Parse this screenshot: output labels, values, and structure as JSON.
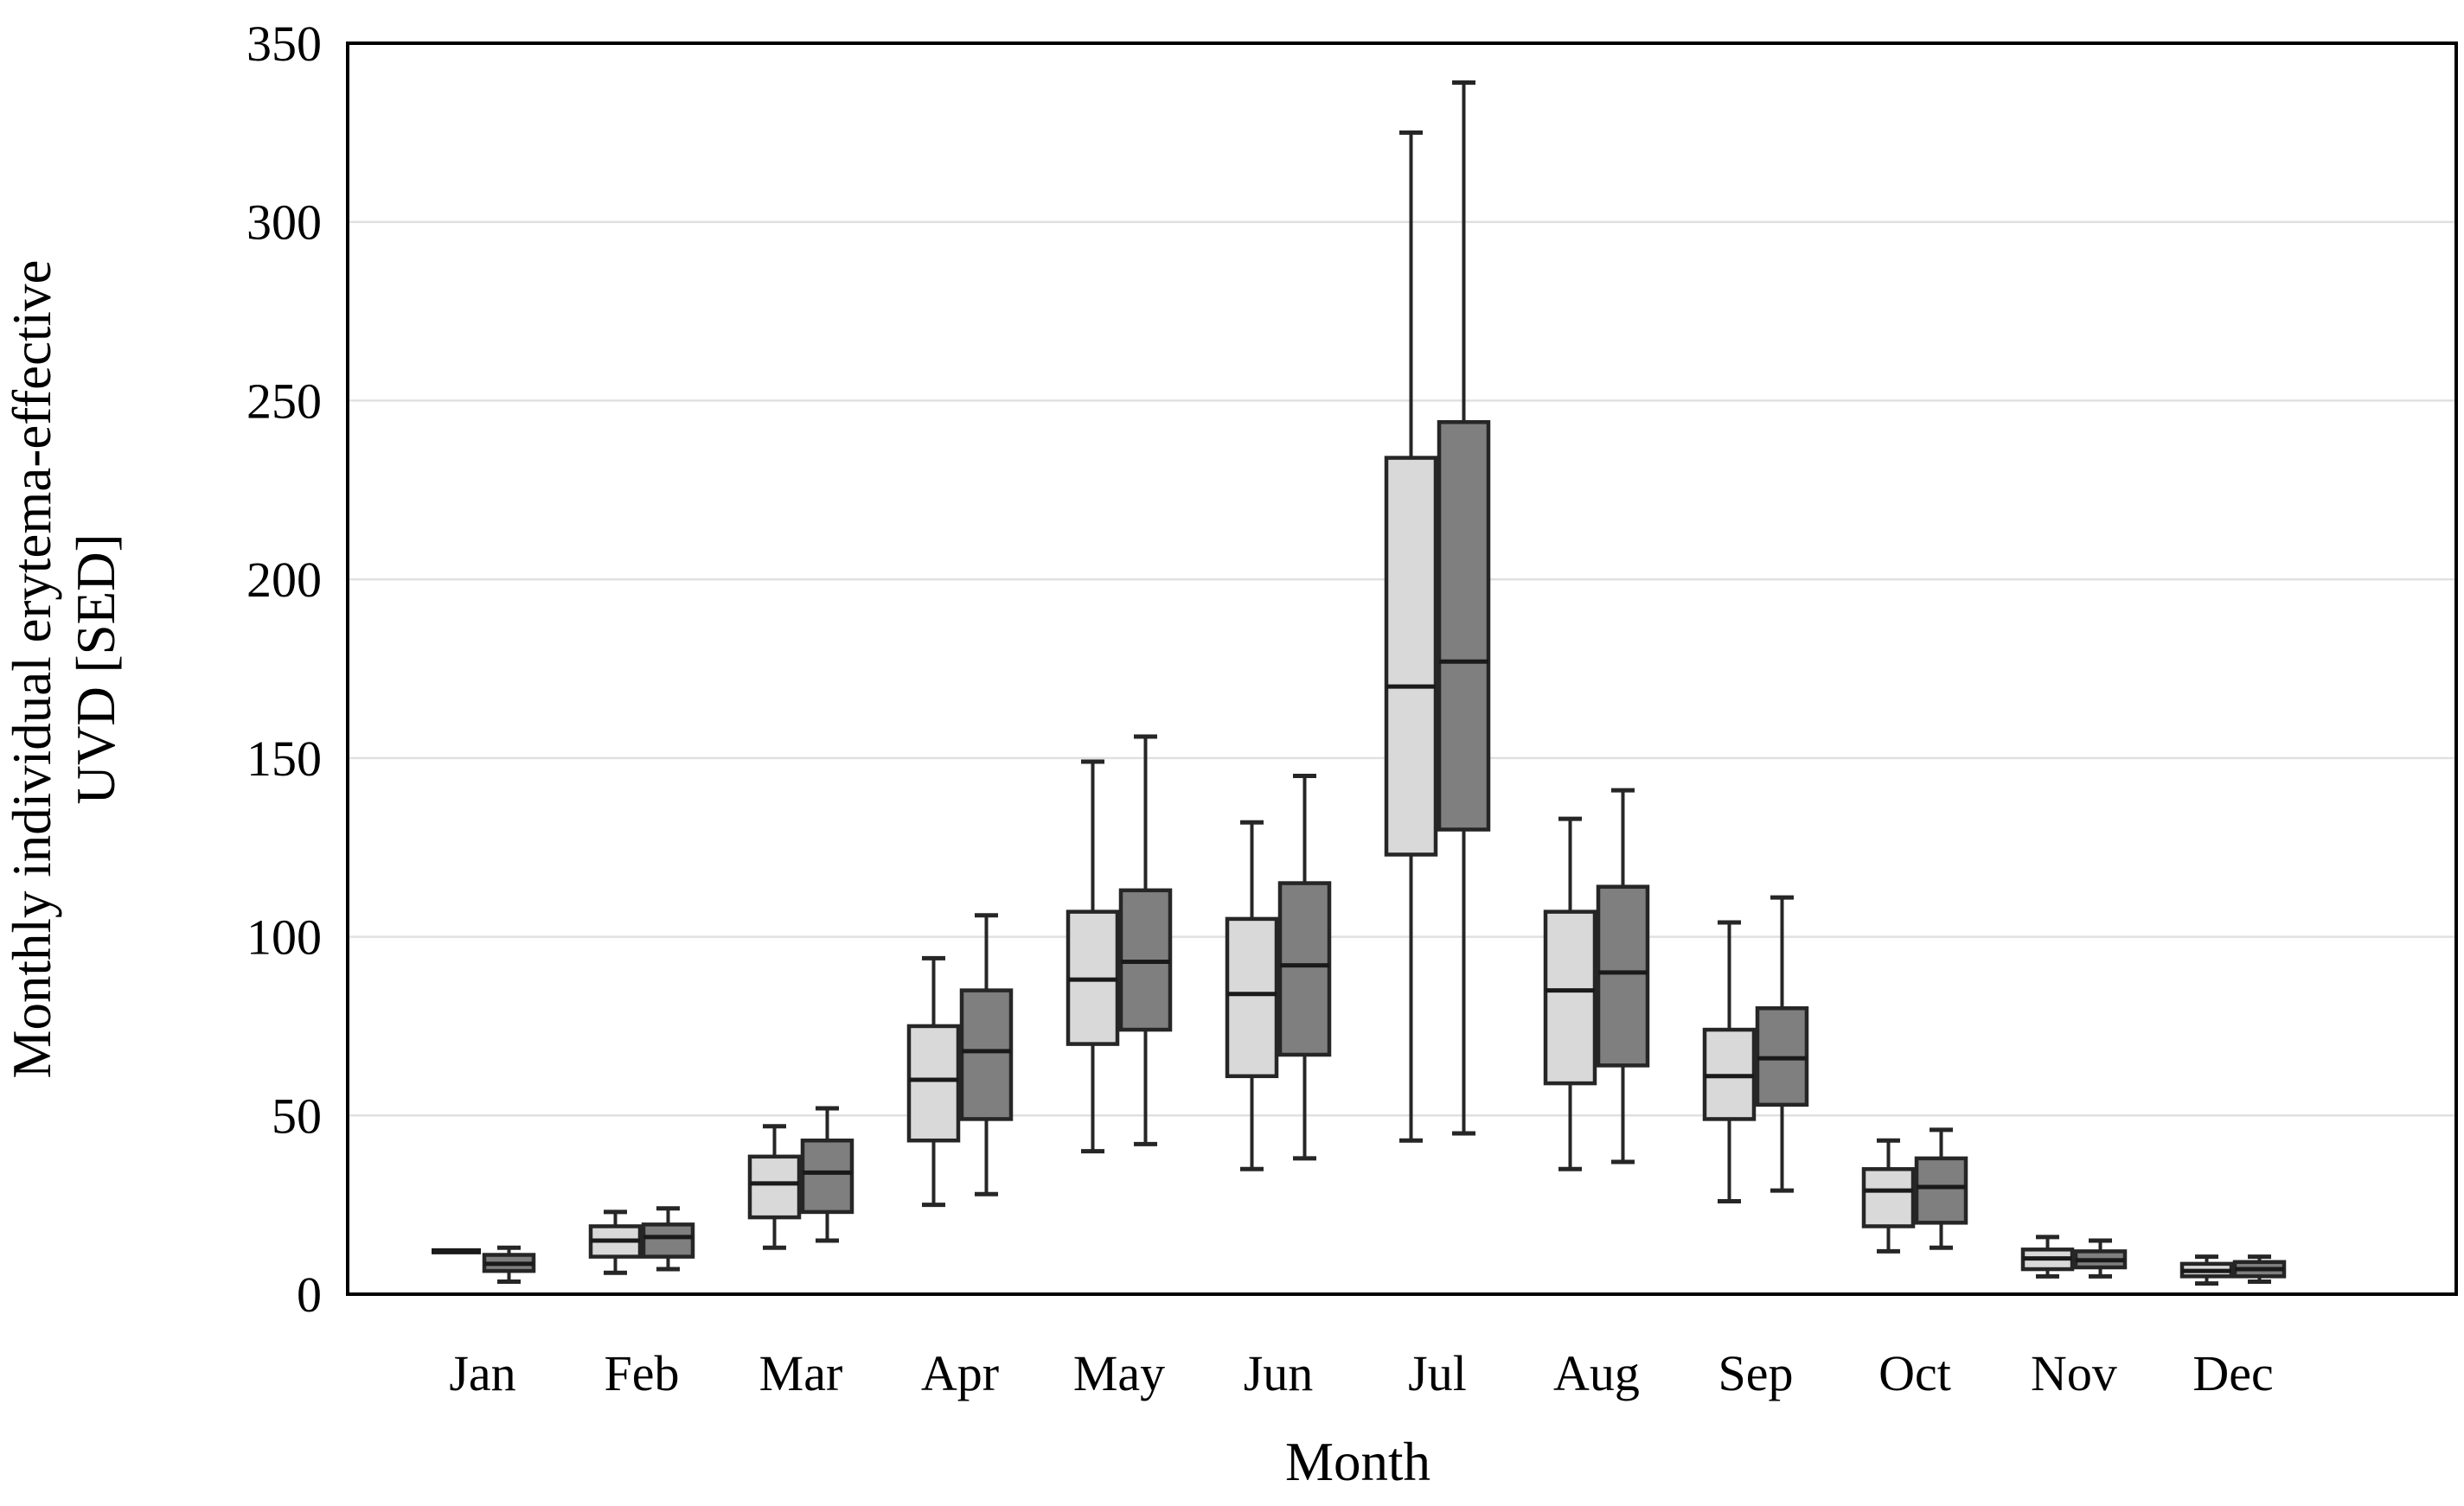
{
  "chart_data": {
    "type": "boxplot",
    "title": "",
    "xlabel": "Month",
    "ylabel": "Monthly individual erytema-effective UVD [SED]",
    "ylabel_lines": [
      "Monthly individual erytema-effective",
      "UVD [SED]"
    ],
    "ylim": [
      0,
      350
    ],
    "yticks": [
      0,
      50,
      100,
      150,
      200,
      250,
      300,
      350
    ],
    "grid": true,
    "legend": false,
    "categories": [
      "Jan",
      "Feb",
      "Mar",
      "Apr",
      "May",
      "Jun",
      "Jul",
      "Aug",
      "Sep",
      "Oct",
      "Nov",
      "Dec"
    ],
    "series": [
      {
        "name": "light-gray",
        "fill": "#d9d9d9",
        "boxes": [
          {
            "min": 12,
            "q1": 12,
            "median": 12,
            "q3": 12,
            "max": 12
          },
          {
            "min": 6,
            "q1": 10.5,
            "median": 15,
            "q3": 19,
            "max": 23
          },
          {
            "min": 13,
            "q1": 21.5,
            "median": 31,
            "q3": 38.5,
            "max": 47
          },
          {
            "min": 25,
            "q1": 43,
            "median": 60,
            "q3": 75,
            "max": 94
          },
          {
            "min": 40,
            "q1": 70,
            "median": 88,
            "q3": 107,
            "max": 149
          },
          {
            "min": 35,
            "q1": 61,
            "median": 84,
            "q3": 105,
            "max": 132
          },
          {
            "min": 43,
            "q1": 123,
            "median": 170,
            "q3": 234,
            "max": 325
          },
          {
            "min": 35,
            "q1": 59,
            "median": 85,
            "q3": 107,
            "max": 133
          },
          {
            "min": 26,
            "q1": 49,
            "median": 61,
            "q3": 74,
            "max": 104
          },
          {
            "min": 12,
            "q1": 19,
            "median": 29,
            "q3": 35,
            "max": 43
          },
          {
            "min": 5,
            "q1": 7,
            "median": 10,
            "q3": 12.5,
            "max": 16
          },
          {
            "min": 3,
            "q1": 5,
            "median": 6.5,
            "q3": 8.5,
            "max": 10.5
          }
        ]
      },
      {
        "name": "dark-gray",
        "fill": "#7f7f7f",
        "boxes": [
          {
            "min": 3.5,
            "q1": 6.5,
            "median": 8.5,
            "q3": 11,
            "max": 13
          },
          {
            "min": 7,
            "q1": 10.5,
            "median": 16,
            "q3": 19.5,
            "max": 24
          },
          {
            "min": 15,
            "q1": 23,
            "median": 34,
            "q3": 43,
            "max": 52
          },
          {
            "min": 28,
            "q1": 49,
            "median": 68,
            "q3": 85,
            "max": 106
          },
          {
            "min": 42,
            "q1": 74,
            "median": 93,
            "q3": 113,
            "max": 156
          },
          {
            "min": 38,
            "q1": 67,
            "median": 92,
            "q3": 115,
            "max": 145
          },
          {
            "min": 45,
            "q1": 130,
            "median": 177,
            "q3": 244,
            "max": 339
          },
          {
            "min": 37,
            "q1": 64,
            "median": 90,
            "q3": 114,
            "max": 141
          },
          {
            "min": 29,
            "q1": 53,
            "median": 66,
            "q3": 80,
            "max": 111
          },
          {
            "min": 13,
            "q1": 20,
            "median": 30,
            "q3": 38,
            "max": 46
          },
          {
            "min": 5,
            "q1": 7.5,
            "median": 9.5,
            "q3": 12,
            "max": 15
          },
          {
            "min": 3.5,
            "q1": 5,
            "median": 7,
            "q3": 9,
            "max": 10.5
          }
        ]
      }
    ],
    "colors": {
      "light_fill": "#d9d9d9",
      "dark_fill": "#7f7f7f",
      "box_border": "#262626",
      "median_line": "#1a1a1a",
      "whisker": "#262626",
      "gridline": "#e0e0e0",
      "plot_border": "#000000",
      "text": "#000000",
      "background": "#ffffff"
    }
  }
}
